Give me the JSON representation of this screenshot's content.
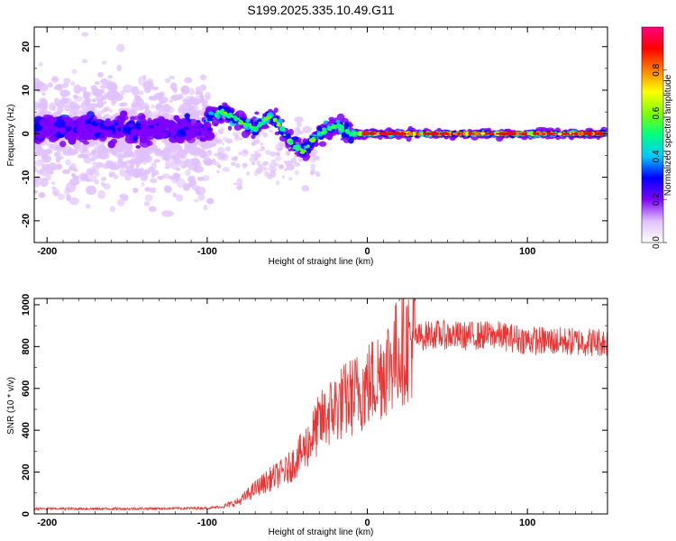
{
  "page_title": "S199.2025.335.10.49.G11",
  "chart_data": [
    {
      "type": "heatmap",
      "title": "S199.2025.335.10.49.G11",
      "xlabel": "Height of straight line (km)",
      "ylabel": "Frequency (Hz)",
      "xlim": [
        -208,
        150
      ],
      "ylim": [
        -25,
        24.5
      ],
      "xticks": [
        -200,
        -100,
        0,
        100
      ],
      "yticks": [
        -20,
        -10,
        0,
        10,
        20
      ],
      "colorbar": {
        "label": "Normalized spectral amplitude",
        "range": [
          0,
          1
        ],
        "ticks": [
          "0.0",
          "0.2",
          "0.4",
          "0.6",
          "0.8"
        ],
        "colors": [
          "#ffffff",
          "#e0c0ff",
          "#8000ff",
          "#0000ff",
          "#00c8ff",
          "#00ff80",
          "#80ff00",
          "#ffff00",
          "#ff8000",
          "#ff0000",
          "#ff0080"
        ]
      },
      "ridge": {
        "x": [
          -100,
          -95,
          -90,
          -85,
          -80,
          -75,
          -70,
          -65,
          -60,
          -55,
          -50,
          -45,
          -40,
          -35,
          -30,
          -25,
          -20,
          -15,
          -10,
          -5,
          0,
          20,
          40,
          60,
          80,
          100,
          120,
          150
        ],
        "freq": [
          4,
          4.5,
          5,
          4,
          3,
          2,
          1,
          3,
          4,
          2,
          -1,
          -3,
          -4,
          -2,
          0,
          1,
          2,
          1,
          0,
          0,
          0,
          0,
          0,
          0,
          0,
          0,
          0,
          0
        ]
      }
    },
    {
      "type": "line",
      "xlabel": "Height of straight line (km)",
      "ylabel": "SNR (10 * v/v)",
      "xlim": [
        -208,
        150
      ],
      "ylim": [
        0,
        1030
      ],
      "xticks": [
        -200,
        -100,
        0,
        100
      ],
      "yticks": [
        0,
        200,
        400,
        600,
        800,
        1000
      ],
      "color": "#ee3333",
      "trend": {
        "x": [
          -208,
          -150,
          -100,
          -90,
          -80,
          -70,
          -60,
          -50,
          -40,
          -30,
          -20,
          -10,
          0,
          10,
          20,
          30,
          40,
          60,
          80,
          100,
          120,
          150
        ],
        "snr": [
          25,
          25,
          28,
          35,
          60,
          120,
          170,
          210,
          300,
          430,
          510,
          560,
          610,
          690,
          780,
          840,
          860,
          850,
          855,
          830,
          825,
          820
        ]
      }
    }
  ]
}
